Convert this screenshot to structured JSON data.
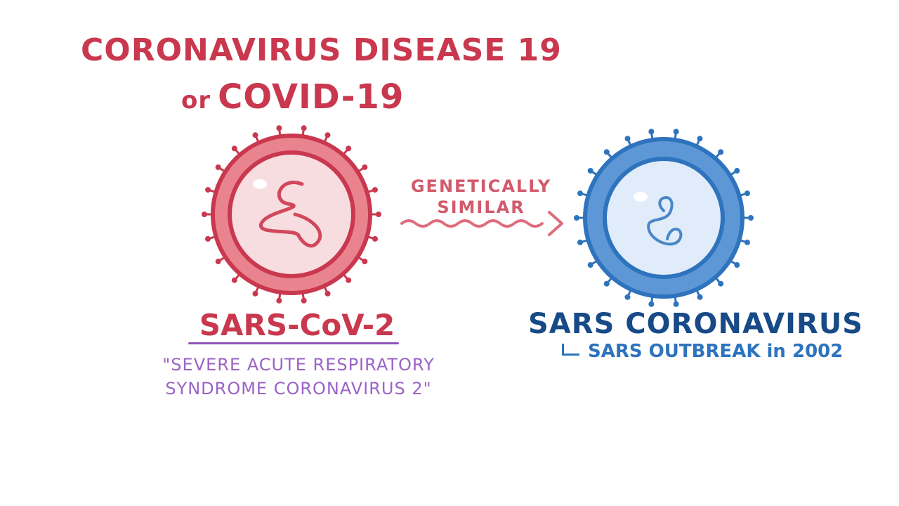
{
  "title": {
    "line1": "Coronavirus disease 19",
    "line2_prefix": "or",
    "line2_main": "COVID-19"
  },
  "arrow": {
    "line1": "GENETICALLY",
    "line2": "SIMILAR"
  },
  "left_virus": {
    "name": "SARS-CoV-2",
    "fullname_line1": "\"Severe Acute Respiratory",
    "fullname_line2": "Syndrome CoronaVirus 2\""
  },
  "right_virus": {
    "name": "SARS CORONAVIRUS",
    "note": "SARS OUTBREAK in 2002"
  },
  "colors": {
    "red": "#c9384e",
    "pink": "#f3c6cc",
    "purple": "#9a63c6",
    "blue_dark": "#174a86",
    "blue": "#2e73bd",
    "blue_light": "#cfe2f6"
  }
}
